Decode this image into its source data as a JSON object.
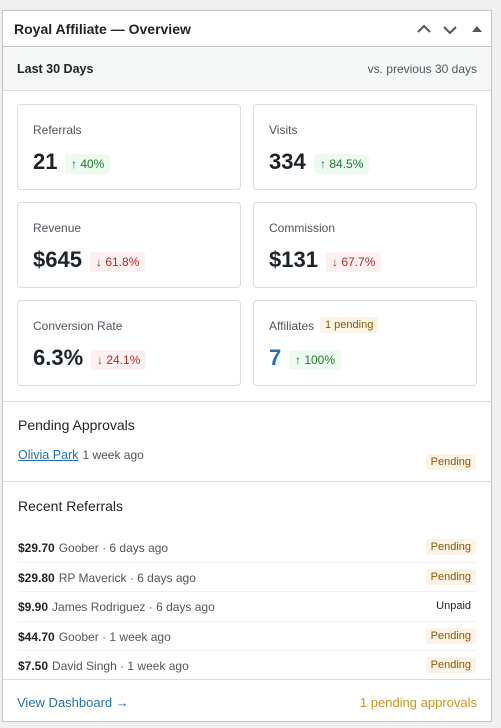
{
  "header": {
    "title": "Royal Affiliate — Overview"
  },
  "period": {
    "label": "Last 30 Days",
    "comparison": "vs. previous 30 days"
  },
  "stats": [
    {
      "label": "Referrals",
      "value": "21",
      "change": "↑ 40%",
      "direction": "up"
    },
    {
      "label": "Visits",
      "value": "334",
      "change": "↑ 84.5%",
      "direction": "up"
    },
    {
      "label": "Revenue",
      "value": "$645",
      "change": "↓ 61.8%",
      "direction": "down"
    },
    {
      "label": "Commission",
      "value": "$131",
      "change": "↓ 67.7%",
      "direction": "down"
    },
    {
      "label": "Conversion Rate",
      "value": "6.3%",
      "change": "↓ 24.1%",
      "direction": "down"
    },
    {
      "label": "Affiliates",
      "badge": "1 pending",
      "value": "7",
      "change": "↑ 100%",
      "direction": "up",
      "highlight": true
    }
  ],
  "pending": {
    "title": "Pending Approvals",
    "items": [
      {
        "name": "Olivia Park",
        "time": "1 week ago",
        "status": "Pending"
      }
    ]
  },
  "referrals": {
    "title": "Recent Referrals",
    "items": [
      {
        "amount": "$29.70",
        "detail": "Goober · 6 days ago",
        "status": "Pending"
      },
      {
        "amount": "$29.80",
        "detail": "RP Maverick · 6 days ago",
        "status": "Pending"
      },
      {
        "amount": "$9.90",
        "detail": "James Rodriguez · 6 days ago",
        "status": "Unpaid"
      },
      {
        "amount": "$44.70",
        "detail": "Goober · 1 week ago",
        "status": "Pending"
      },
      {
        "amount": "$7.50",
        "detail": "David Singh · 1 week ago",
        "status": "Pending"
      }
    ]
  },
  "footer": {
    "link": "View Dashboard →",
    "summary": "1 pending approvals"
  }
}
